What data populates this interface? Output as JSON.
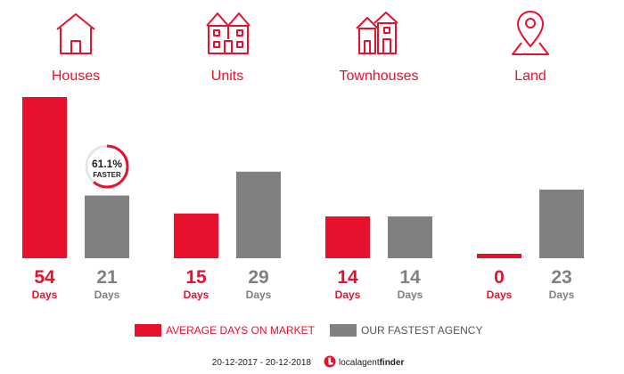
{
  "colors": {
    "average": "#e8112d",
    "fastest": "#808080",
    "badge_ring_track": "#e6e6e6",
    "text_dark": "#222222"
  },
  "categories": [
    {
      "key": "houses",
      "label": "Houses",
      "icon": "house-icon"
    },
    {
      "key": "units",
      "label": "Units",
      "icon": "units-building-icon"
    },
    {
      "key": "townhouses",
      "label": "Townhouses",
      "icon": "townhouses-icon"
    },
    {
      "key": "land",
      "label": "Land",
      "icon": "map-pin-icon"
    }
  ],
  "unit_label": "Days",
  "badge": {
    "category": "houses",
    "percent_text": "61.1%",
    "label": "FASTER",
    "fraction": 0.611
  },
  "legend": {
    "average_label": "AVERAGE DAYS ON MARKET",
    "fastest_label": "OUR FASTEST AGENCY"
  },
  "footer": {
    "date_range": "20-12-2017 - 20-12-2018",
    "brand_regular": "localagent",
    "brand_bold": "finder"
  },
  "chart_data": {
    "type": "bar",
    "categories": [
      "Houses",
      "Units",
      "Townhouses",
      "Land"
    ],
    "series": [
      {
        "name": "AVERAGE DAYS ON MARKET",
        "values": [
          54,
          15,
          14,
          0
        ],
        "color": "#e8112d"
      },
      {
        "name": "OUR FASTEST AGENCY",
        "values": [
          21,
          29,
          14,
          23
        ],
        "color": "#808080"
      }
    ],
    "ylabel": "Days",
    "ylim": [
      0,
      54
    ],
    "grid": false,
    "legend": "bottom"
  }
}
